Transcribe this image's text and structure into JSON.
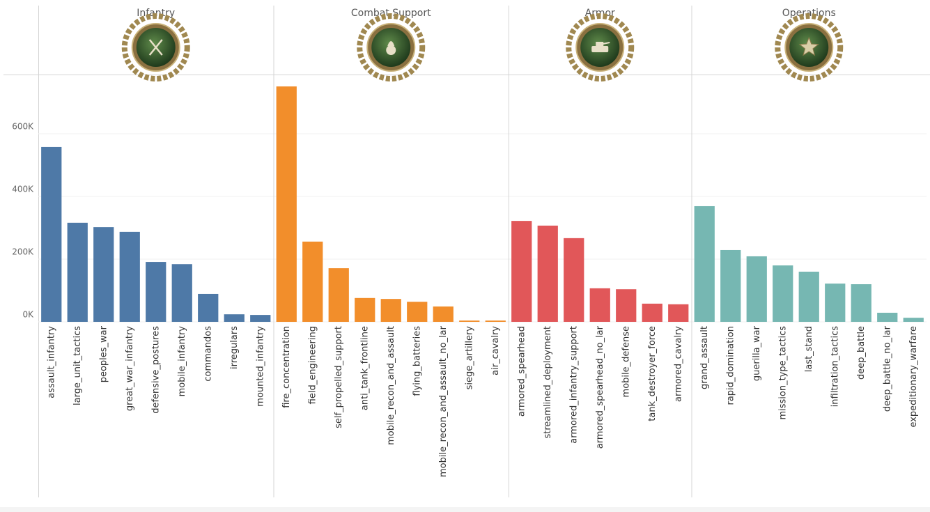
{
  "chart_data": {
    "type": "bar",
    "ylim": [
      0,
      789000
    ],
    "yticks": [
      {
        "value": 0,
        "label": "0K"
      },
      {
        "value": 200000,
        "label": "200K"
      },
      {
        "value": 400000,
        "label": "400K"
      },
      {
        "value": 600000,
        "label": "600K"
      }
    ],
    "grid": true,
    "panels": [
      {
        "title": "Infantry",
        "color": "#4e79a7",
        "categories": [
          "assault_infantry",
          "large_unit_tactics",
          "peoples_war",
          "great_war_infantry",
          "defensive_postures",
          "mobile_infantry",
          "commandos",
          "irregulars",
          "mounted_infantry"
        ],
        "values": [
          558000,
          316000,
          302000,
          287000,
          191000,
          184000,
          89000,
          24000,
          22000
        ]
      },
      {
        "title": "Combat Support",
        "color": "#f28e2b",
        "categories": [
          "fire_concentration",
          "field_engineering",
          "self_propelled_support",
          "anti_tank_frontline",
          "mobile_recon_and_assault",
          "flying_batteries",
          "mobile_recon_and_assault_no_lar",
          "siege_artillery",
          "air_cavalry"
        ],
        "values": [
          751000,
          256000,
          171000,
          76000,
          73000,
          64000,
          49000,
          4000,
          4000
        ]
      },
      {
        "title": "Armor",
        "color": "#e15759",
        "categories": [
          "armored_spearhead",
          "streamlined_deployment",
          "armored_infantry_support",
          "armored_spearhead_no_lar",
          "mobile_defense",
          "tank_destroyer_force",
          "armored_cavalry"
        ],
        "values": [
          322000,
          307000,
          267000,
          107000,
          104000,
          58000,
          56000
        ]
      },
      {
        "title": "Operations",
        "color": "#76b7b2",
        "categories": [
          "grand_assault",
          "rapid_domination",
          "guerilla_war",
          "mission_type_tactics",
          "last_stand",
          "infiltration_tactics",
          "deep_battle",
          "deep_battle_no_lar",
          "expeditionary_warfare"
        ],
        "values": [
          369000,
          229000,
          209000,
          180000,
          160000,
          122000,
          120000,
          29000,
          13000
        ]
      }
    ]
  }
}
